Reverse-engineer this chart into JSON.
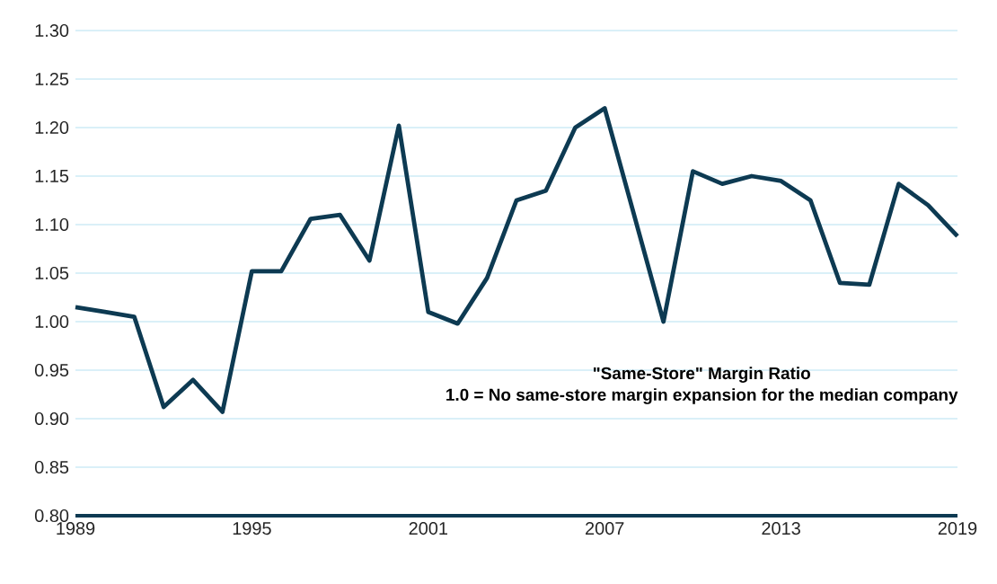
{
  "chart_data": {
    "type": "line",
    "x": [
      1989,
      1990,
      1991,
      1992,
      1993,
      1994,
      1995,
      1996,
      1997,
      1998,
      1999,
      2000,
      2001,
      2002,
      2003,
      2004,
      2005,
      2006,
      2007,
      2008,
      2009,
      2010,
      2011,
      2012,
      2013,
      2014,
      2015,
      2016,
      2017,
      2018,
      2019
    ],
    "values": [
      1.015,
      1.01,
      1.005,
      0.912,
      0.94,
      0.907,
      1.052,
      1.052,
      1.106,
      1.11,
      1.063,
      1.202,
      1.01,
      0.998,
      1.045,
      1.125,
      1.135,
      1.2,
      1.22,
      1.11,
      1.0,
      1.155,
      1.142,
      1.15,
      1.145,
      1.125,
      1.04,
      1.038,
      1.142,
      1.12,
      1.088
    ],
    "color": "#0d3a52",
    "xlim": [
      1989,
      2019
    ],
    "ylim": [
      0.8,
      1.3
    ],
    "xticks": [
      1989,
      1995,
      2001,
      2007,
      2013,
      2019
    ],
    "yticks": [
      {
        "value": 0.8,
        "label": "0.80"
      },
      {
        "value": 0.85,
        "label": "0.85"
      },
      {
        "value": 0.9,
        "label": "0.90"
      },
      {
        "value": 0.95,
        "label": "0.95"
      },
      {
        "value": 1.0,
        "label": "1.00"
      },
      {
        "value": 1.05,
        "label": "1.05"
      },
      {
        "value": 1.1,
        "label": "1.10"
      },
      {
        "value": 1.15,
        "label": "1.15"
      },
      {
        "value": 1.2,
        "label": "1.20"
      },
      {
        "value": 1.25,
        "label": "1.25"
      },
      {
        "value": 1.3,
        "label": "1.30"
      }
    ],
    "grid": "y",
    "marker": "none",
    "line_style": "solid",
    "annotations": [
      "\"Same-Store\" Margin Ratio",
      "1.0 = No same-store margin expansion for the median company"
    ]
  }
}
